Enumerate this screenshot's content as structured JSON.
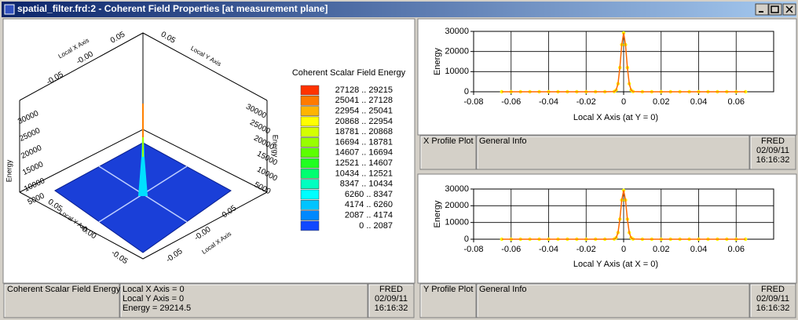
{
  "window": {
    "title": "spatial_filter.frd:2 - Coherent Field Properties   [at measurement plane]"
  },
  "surface_plot": {
    "energy_axes": [
      {
        "label": "Energy",
        "ticks": [
          "30000",
          "25000",
          "20000",
          "15000",
          "10000",
          "5000"
        ]
      },
      {
        "label": "Energy",
        "ticks": [
          "30000",
          "25000",
          "20000",
          "15000",
          "10000",
          "5000"
        ]
      }
    ],
    "axis_groups": [
      {
        "label": "Local X Axis",
        "ticks": [
          "0.05",
          "-0.00",
          "-0.05"
        ]
      },
      {
        "label": "Local Y Axis",
        "ticks": [
          "0.05"
        ]
      },
      {
        "label": "Local Y Axis",
        "ticks": [
          "0.05",
          "-0.00",
          "-0.05"
        ]
      },
      {
        "label": "Local X Axis",
        "ticks": [
          "0.05",
          "-0.00",
          "-0.05"
        ]
      }
    ],
    "legend": {
      "title": "Coherent Scalar Field Energy",
      "items": [
        {
          "label": "27128 .. 29215",
          "color": "#ff3300"
        },
        {
          "label": "25041 .. 27128",
          "color": "#ff7a00"
        },
        {
          "label": "22954 .. 25041",
          "color": "#ffb400"
        },
        {
          "label": "20868 .. 22954",
          "color": "#ffff00"
        },
        {
          "label": "18781 .. 20868",
          "color": "#d4ff00"
        },
        {
          "label": "16694 .. 18781",
          "color": "#98ff00"
        },
        {
          "label": "14607 .. 16694",
          "color": "#5cff00"
        },
        {
          "label": "12521 .. 14607",
          "color": "#20ff20"
        },
        {
          "label": "10434 .. 12521",
          "color": "#00ff70"
        },
        {
          "label": "8347 .. 10434",
          "color": "#00ffc0"
        },
        {
          "label": "6260 .. 8347",
          "color": "#00ffff"
        },
        {
          "label": "4174 .. 6260",
          "color": "#00c4ff"
        },
        {
          "label": "2087 .. 4174",
          "color": "#0088ff"
        },
        {
          "label": "0 .. 2087",
          "color": "#1048ff"
        }
      ]
    }
  },
  "chart_data": [
    {
      "type": "line",
      "xlabel": "Local X Axis (at Y = 0)",
      "ylabel": "Energy",
      "xlim": [
        -0.08,
        0.08
      ],
      "xticks": [
        -0.08,
        -0.06,
        -0.04,
        -0.02,
        0,
        0.02,
        0.04,
        0.06
      ],
      "ylim": [
        0,
        30000
      ],
      "yticks": [
        0,
        10000,
        20000,
        30000
      ],
      "grid": true,
      "x": [
        -0.065,
        -0.06,
        -0.055,
        -0.05,
        -0.045,
        -0.04,
        -0.035,
        -0.03,
        -0.025,
        -0.02,
        -0.015,
        -0.01,
        -0.005,
        -0.004,
        -0.003,
        -0.002,
        -0.001,
        0,
        0.001,
        0.002,
        0.003,
        0.004,
        0.005,
        0.01,
        0.015,
        0.02,
        0.025,
        0.03,
        0.035,
        0.04,
        0.045,
        0.05,
        0.055,
        0.06,
        0.065
      ],
      "series": [
        {
          "color": "#ff6a00",
          "marker_color": "#ffff00",
          "values": [
            0,
            0,
            0,
            0,
            0,
            0,
            0,
            0,
            0,
            0,
            0,
            0,
            115,
            830,
            3950,
            12000,
            23400,
            29214.5,
            23400,
            12000,
            3950,
            830,
            115,
            0,
            0,
            0,
            0,
            0,
            0,
            0,
            0,
            0,
            0,
            0,
            0
          ]
        }
      ]
    },
    {
      "type": "line",
      "xlabel": "Local Y Axis (at X = 0)",
      "ylabel": "Energy",
      "xlim": [
        -0.08,
        0.08
      ],
      "xticks": [
        -0.08,
        -0.06,
        -0.04,
        -0.02,
        0,
        0.02,
        0.04,
        0.06
      ],
      "ylim": [
        0,
        30000
      ],
      "yticks": [
        0,
        10000,
        20000,
        30000
      ],
      "grid": true,
      "x": [
        -0.065,
        -0.06,
        -0.055,
        -0.05,
        -0.045,
        -0.04,
        -0.035,
        -0.03,
        -0.025,
        -0.02,
        -0.015,
        -0.01,
        -0.005,
        -0.004,
        -0.003,
        -0.002,
        -0.001,
        0,
        0.001,
        0.002,
        0.003,
        0.004,
        0.005,
        0.01,
        0.015,
        0.02,
        0.025,
        0.03,
        0.035,
        0.04,
        0.045,
        0.05,
        0.055,
        0.06,
        0.065
      ],
      "series": [
        {
          "color": "#ff6a00",
          "marker_color": "#ffff00",
          "values": [
            0,
            0,
            0,
            0,
            0,
            0,
            0,
            0,
            0,
            0,
            0,
            0,
            115,
            830,
            3950,
            12000,
            23400,
            29214.5,
            23400,
            12000,
            3950,
            830,
            115,
            0,
            0,
            0,
            0,
            0,
            0,
            0,
            0,
            0,
            0,
            0,
            0
          ]
        }
      ]
    }
  ],
  "info_bars": [
    {
      "name": "Coherent Scalar Field Energy",
      "details": [
        "Local X Axis = 0",
        "Local Y Axis = 0",
        "Energy = 29214.5"
      ],
      "app": "FRED",
      "date": "02/09/11",
      "time": "16:16:32"
    },
    {
      "name": "X Profile Plot",
      "details": [
        "General Info"
      ],
      "app": "FRED",
      "date": "02/09/11",
      "time": "16:16:32"
    },
    {
      "name": "Y Profile Plot",
      "details": [
        "General Info"
      ],
      "app": "FRED",
      "date": "02/09/11",
      "time": "16:16:32"
    }
  ]
}
